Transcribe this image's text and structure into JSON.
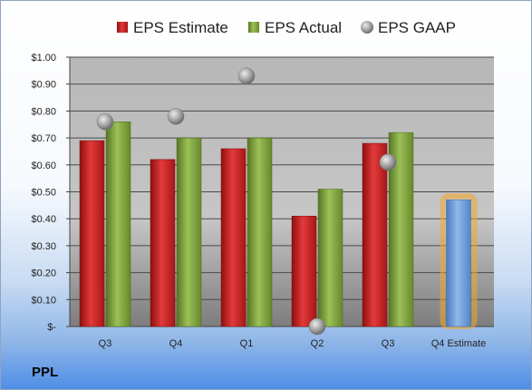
{
  "ticker": "PPL",
  "chart_data": {
    "type": "bar",
    "categories": [
      "Q3",
      "Q4",
      "Q1",
      "Q2",
      "Q3",
      "Q4 Estimate"
    ],
    "series": [
      {
        "name": "EPS Estimate",
        "kind": "bar",
        "color": "#cc1f1f",
        "values": [
          0.69,
          0.62,
          0.66,
          0.41,
          0.68,
          null
        ]
      },
      {
        "name": "EPS Actual",
        "kind": "bar",
        "color": "#7fa23b",
        "values": [
          0.76,
          0.7,
          0.7,
          0.51,
          0.72,
          null
        ]
      },
      {
        "name": "EPS GAAP",
        "kind": "scatter",
        "color": "#a9a9a9",
        "values": [
          0.76,
          0.78,
          0.93,
          0.0,
          0.61,
          null
        ]
      },
      {
        "name": "",
        "kind": "bar",
        "color": "#6f9fd8",
        "highlight": "#f5a623",
        "values": [
          null,
          null,
          null,
          null,
          null,
          0.47
        ]
      }
    ],
    "ylim": [
      0,
      1.0
    ],
    "yticks": [
      0,
      0.1,
      0.2,
      0.3,
      0.4,
      0.5,
      0.6,
      0.7,
      0.8,
      0.9,
      1.0
    ],
    "ytick_labels": [
      "$-",
      "$0.10",
      "$0.20",
      "$0.30",
      "$0.40",
      "$0.50",
      "$0.60",
      "$0.70",
      "$0.80",
      "$0.90",
      "$1.00"
    ],
    "grid": true,
    "legend": "top"
  }
}
